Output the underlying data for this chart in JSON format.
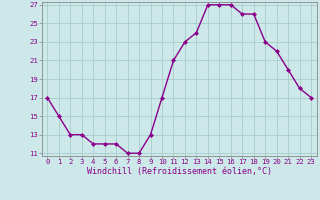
{
  "x": [
    0,
    1,
    2,
    3,
    4,
    5,
    6,
    7,
    8,
    9,
    10,
    11,
    12,
    13,
    14,
    15,
    16,
    17,
    18,
    19,
    20,
    21,
    22,
    23
  ],
  "y": [
    17,
    15,
    13,
    13,
    12,
    12,
    12,
    11,
    11,
    13,
    17,
    21,
    23,
    24,
    27,
    27,
    27,
    26,
    26,
    23,
    22,
    20,
    18,
    17
  ],
  "line_color": "#8B008B",
  "marker": "D",
  "marker_size": 2.0,
  "bg_color": "#cce8e8",
  "grid_color": "#aacccc",
  "xlabel": "Windchill (Refroidissement éolien,°C)",
  "ylim": [
    11,
    27
  ],
  "xlim": [
    -0.5,
    23.5
  ],
  "yticks": [
    11,
    13,
    15,
    17,
    19,
    21,
    23,
    25,
    27
  ],
  "xticks": [
    0,
    1,
    2,
    3,
    4,
    5,
    6,
    7,
    8,
    9,
    10,
    11,
    12,
    13,
    14,
    15,
    16,
    17,
    18,
    19,
    20,
    21,
    22,
    23
  ],
  "tick_label_fontsize": 5.2,
  "xlabel_fontsize": 6.0,
  "line_width": 1.0
}
